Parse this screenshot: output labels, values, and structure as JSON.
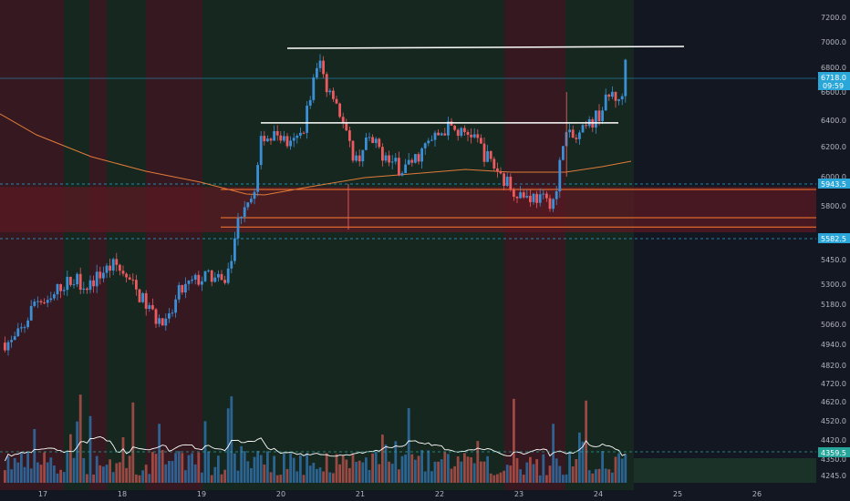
{
  "colors": {
    "background": "#131722",
    "session_red": "#3a1820",
    "session_green": "#17291f",
    "candle_up": "#3a8fd6",
    "candle_down": "#ec5a5f",
    "volume_up": "#2f6fa6",
    "volume_down": "#b0504a",
    "ma": "#e07b39",
    "volume_ma": "#ffffff",
    "resistance": "#ffffff",
    "zone": "#5a1a22",
    "zone_line": "#ff7a30",
    "price_line": "#2aa6d8",
    "axis_text": "#b2b5be"
  },
  "chart_data": {
    "type": "candlestick",
    "title": "",
    "xlabel": "",
    "ylabel": "",
    "y_scale": "log",
    "ylim": [
      4200,
      7350
    ],
    "price_ticks": [
      7200.0,
      7000.0,
      6800.0,
      6600.0,
      6400.0,
      6200.0,
      6000.0,
      5800.0,
      5450.0,
      5300.0,
      5180.0,
      5060.0,
      4940.0,
      4820.0,
      4720.0,
      4620.0,
      4520.0,
      4420.0,
      4350.0,
      4245.0
    ],
    "price_tick_labels": [
      "7200.0",
      "7000.0",
      "6800.0",
      "6600.0",
      "6400.0",
      "6200.0",
      "6000.0",
      "5800.0",
      "5450.0",
      "5300.0",
      "5180.0",
      "5060.0",
      "4940.0",
      "4820.0",
      "4720.0",
      "4620.0",
      "4520.0",
      "4420.0",
      "4350.0",
      "4245.0"
    ],
    "x_ticks": [
      "17",
      "18",
      "19",
      "20",
      "21",
      "22",
      "23",
      "24",
      "25",
      "26"
    ],
    "x_range_days": [
      16.6,
      26.6
    ],
    "last_bar_day": 24.35,
    "current_price": "6718.0",
    "countdown": "09:59",
    "level_top": "5943.5",
    "level_bottom": "5582.5",
    "volume_ma_value": "4359.5",
    "resistance_high": 6950,
    "range_top": 6380,
    "zone_top": 5930,
    "zone_bottom": 5600,
    "zone_line_1": 5710,
    "zone_line_2": 5640,
    "price_path": [
      [
        16.6,
        4950
      ],
      [
        16.75,
        5050
      ],
      [
        16.9,
        5220
      ],
      [
        17.05,
        5170
      ],
      [
        17.2,
        5290
      ],
      [
        17.4,
        5330
      ],
      [
        17.55,
        5290
      ],
      [
        17.75,
        5380
      ],
      [
        17.9,
        5420
      ],
      [
        18.0,
        5360
      ],
      [
        18.1,
        5300
      ],
      [
        18.25,
        5200
      ],
      [
        18.4,
        5100
      ],
      [
        18.55,
        5050
      ],
      [
        18.7,
        5250
      ],
      [
        18.9,
        5320
      ],
      [
        19.1,
        5350
      ],
      [
        19.25,
        5300
      ],
      [
        19.35,
        5420
      ],
      [
        19.45,
        5700
      ],
      [
        19.55,
        5850
      ],
      [
        19.65,
        5880
      ],
      [
        19.75,
        6300
      ],
      [
        19.85,
        6260
      ],
      [
        19.95,
        6300
      ],
      [
        20.1,
        6200
      ],
      [
        20.25,
        6300
      ],
      [
        20.4,
        6700
      ],
      [
        20.48,
        6850
      ],
      [
        20.55,
        6650
      ],
      [
        20.65,
        6600
      ],
      [
        20.75,
        6400
      ],
      [
        20.85,
        6200
      ],
      [
        20.95,
        6100
      ],
      [
        21.05,
        6250
      ],
      [
        21.2,
        6200
      ],
      [
        21.35,
        6100
      ],
      [
        21.5,
        6050
      ],
      [
        21.65,
        6100
      ],
      [
        21.8,
        6200
      ],
      [
        21.95,
        6280
      ],
      [
        22.1,
        6350
      ],
      [
        22.25,
        6300
      ],
      [
        22.4,
        6300
      ],
      [
        22.55,
        6150
      ],
      [
        22.7,
        6050
      ],
      [
        22.85,
        5950
      ],
      [
        22.95,
        5900
      ],
      [
        23.05,
        5870
      ],
      [
        23.2,
        5860
      ],
      [
        23.35,
        5820
      ],
      [
        23.45,
        5860
      ],
      [
        23.55,
        6300
      ],
      [
        23.7,
        6250
      ],
      [
        23.85,
        6350
      ],
      [
        24.0,
        6450
      ],
      [
        24.1,
        6550
      ],
      [
        24.18,
        6600
      ],
      [
        24.25,
        6500
      ],
      [
        24.35,
        6718
      ]
    ]
  }
}
